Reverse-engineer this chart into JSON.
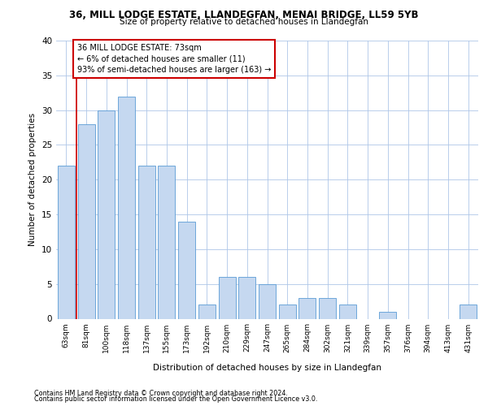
{
  "title1": "36, MILL LODGE ESTATE, LLANDEGFAN, MENAI BRIDGE, LL59 5YB",
  "title2": "Size of property relative to detached houses in Llandegfan",
  "xlabel": "Distribution of detached houses by size in Llandegfan",
  "ylabel": "Number of detached properties",
  "categories": [
    "63sqm",
    "81sqm",
    "100sqm",
    "118sqm",
    "137sqm",
    "155sqm",
    "173sqm",
    "192sqm",
    "210sqm",
    "229sqm",
    "247sqm",
    "265sqm",
    "284sqm",
    "302sqm",
    "321sqm",
    "339sqm",
    "357sqm",
    "376sqm",
    "394sqm",
    "413sqm",
    "431sqm"
  ],
  "values": [
    22,
    28,
    30,
    32,
    22,
    22,
    14,
    2,
    6,
    6,
    5,
    2,
    3,
    3,
    2,
    0,
    1,
    0,
    0,
    0,
    2
  ],
  "bar_color": "#c5d8f0",
  "bar_edge_color": "#5b9bd5",
  "annotation_text": "36 MILL LODGE ESTATE: 73sqm\n← 6% of detached houses are smaller (11)\n93% of semi-detached houses are larger (163) →",
  "annotation_box_color": "#ffffff",
  "annotation_box_edge_color": "#cc0000",
  "ylim": [
    0,
    40
  ],
  "yticks": [
    0,
    5,
    10,
    15,
    20,
    25,
    30,
    35,
    40
  ],
  "footer1": "Contains HM Land Registry data © Crown copyright and database right 2024.",
  "footer2": "Contains public sector information licensed under the Open Government Licence v3.0.",
  "bg_color": "#ffffff",
  "grid_color": "#aec6e8",
  "red_line_x": 0.5
}
